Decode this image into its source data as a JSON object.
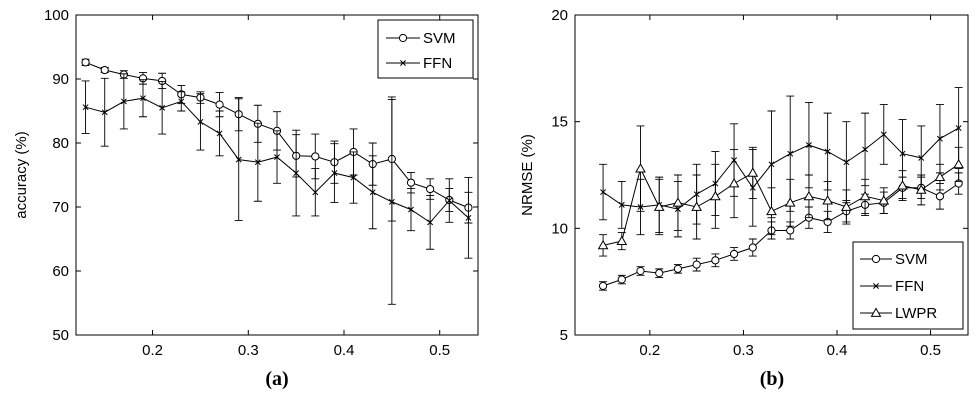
{
  "chart_data": [
    {
      "type": "line",
      "caption": "(a)",
      "xlabel": "",
      "ylabel": "accuracy (%)",
      "xlim": [
        0.12,
        0.54
      ],
      "ylim": [
        50,
        100
      ],
      "xticks": [
        0.2,
        0.3,
        0.4,
        0.5
      ],
      "xtick_labels": [
        "0.2",
        "0.3",
        "0.4",
        "0.5"
      ],
      "yticks": [
        50,
        60,
        70,
        80,
        90,
        100
      ],
      "ytick_labels": [
        "50",
        "60",
        "70",
        "80",
        "90",
        "100"
      ],
      "grid": false,
      "legend": "top-right",
      "x": [
        0.13,
        0.15,
        0.17,
        0.19,
        0.21,
        0.23,
        0.25,
        0.27,
        0.29,
        0.31,
        0.33,
        0.35,
        0.37,
        0.39,
        0.41,
        0.43,
        0.45,
        0.47,
        0.49,
        0.51,
        0.53
      ],
      "series": [
        {
          "name": "SVM",
          "marker": "circle",
          "values": [
            92.6,
            91.4,
            90.7,
            90.1,
            89.7,
            87.6,
            87.1,
            86.0,
            84.5,
            83.0,
            81.9,
            78.0,
            77.9,
            77.0,
            78.6,
            76.7,
            77.5,
            73.8,
            72.8,
            71.1,
            69.9
          ],
          "errors": [
            0.5,
            0.4,
            0.6,
            0.9,
            1.2,
            1.4,
            0.9,
            1.9,
            2.6,
            2.9,
            3.0,
            3.3,
            3.5,
            3.3,
            3.6,
            3.3,
            9.7,
            1.6,
            1.6,
            1.8,
            2.4
          ]
        },
        {
          "name": "FFN",
          "marker": "x",
          "values": [
            85.6,
            84.8,
            86.5,
            87.0,
            85.5,
            86.5,
            83.3,
            81.5,
            77.4,
            77.0,
            77.8,
            75.3,
            72.3,
            75.3,
            74.6,
            72.3,
            70.8,
            69.6,
            67.6,
            71.0,
            68.3
          ],
          "errors": [
            4.1,
            5.3,
            4.3,
            2.9,
            4.1,
            1.5,
            4.4,
            3.5,
            9.5,
            6.1,
            4.1,
            6.7,
            3.7,
            4.6,
            4.0,
            5.7,
            16.0,
            3.3,
            4.2,
            3.4,
            6.3
          ]
        }
      ]
    },
    {
      "type": "line",
      "caption": "(b)",
      "xlabel": "",
      "ylabel": "NRMSE (%)",
      "xlim": [
        0.12,
        0.54
      ],
      "ylim": [
        5,
        20
      ],
      "xticks": [
        0.2,
        0.3,
        0.4,
        0.5
      ],
      "xtick_labels": [
        "0.2",
        "0.3",
        "0.4",
        "0.5"
      ],
      "yticks": [
        5,
        10,
        15,
        20
      ],
      "ytick_labels": [
        "5",
        "10",
        "15",
        "20"
      ],
      "grid": false,
      "legend": "bottom-right",
      "x": [
        0.15,
        0.17,
        0.19,
        0.21,
        0.23,
        0.25,
        0.27,
        0.29,
        0.31,
        0.33,
        0.35,
        0.37,
        0.39,
        0.41,
        0.43,
        0.45,
        0.47,
        0.49,
        0.51,
        0.53
      ],
      "series": [
        {
          "name": "SVM",
          "marker": "circle",
          "values": [
            7.3,
            7.6,
            8.0,
            7.9,
            8.1,
            8.3,
            8.5,
            8.8,
            9.1,
            9.9,
            9.9,
            10.5,
            10.3,
            10.8,
            11.1,
            11.2,
            11.9,
            11.9,
            11.5,
            12.1
          ],
          "errors": [
            0.2,
            0.2,
            0.2,
            0.2,
            0.2,
            0.3,
            0.3,
            0.3,
            0.4,
            0.4,
            0.4,
            0.5,
            0.5,
            0.5,
            0.5,
            0.5,
            0.5,
            0.5,
            0.6,
            0.5
          ]
        },
        {
          "name": "FFN",
          "marker": "x",
          "values": [
            11.7,
            11.1,
            11.0,
            11.1,
            10.9,
            11.6,
            12.1,
            13.2,
            11.9,
            13.0,
            13.5,
            13.9,
            13.6,
            13.1,
            13.7,
            14.4,
            13.5,
            13.3,
            14.2,
            14.7
          ],
          "errors": [
            1.3,
            1.1,
            1.3,
            1.3,
            1.3,
            1.4,
            1.5,
            1.7,
            1.8,
            2.5,
            2.7,
            2.0,
            1.8,
            1.9,
            1.7,
            1.4,
            1.6,
            1.5,
            1.6,
            1.9
          ]
        },
        {
          "name": "LWPR",
          "marker": "triangle",
          "values": [
            9.2,
            9.4,
            12.8,
            11.0,
            11.2,
            11.0,
            11.5,
            12.1,
            12.6,
            10.8,
            11.2,
            11.5,
            11.3,
            11.0,
            11.5,
            11.3,
            12.0,
            11.8,
            12.4,
            13.0
          ],
          "errors": [
            0.5,
            0.4,
            2.0,
            1.3,
            1.3,
            1.5,
            1.5,
            1.6,
            1.2,
            1.1,
            1.1,
            1.0,
            0.9,
            0.8,
            0.8,
            0.6,
            0.7,
            0.7,
            0.6,
            0.8
          ]
        }
      ]
    }
  ]
}
